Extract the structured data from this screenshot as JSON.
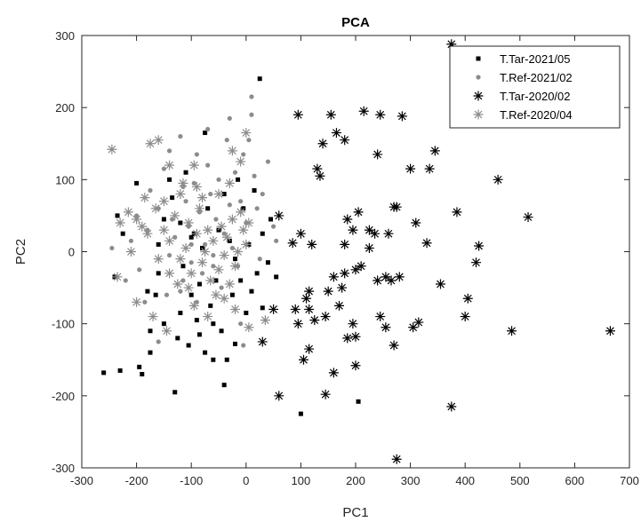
{
  "chart_data": {
    "type": "scatter",
    "title": "PCA",
    "xlabel": "PC1",
    "ylabel": "PC2",
    "xlim": [
      -300,
      700
    ],
    "ylim": [
      -300,
      300
    ],
    "xticks": [
      -300,
      -200,
      -100,
      0,
      100,
      200,
      300,
      400,
      500,
      600,
      700
    ],
    "yticks": [
      -300,
      -200,
      -100,
      0,
      100,
      200,
      300
    ],
    "grid": false,
    "legend_position": "top-right",
    "series": [
      {
        "name": "T.Tar-2021/05",
        "marker": "square",
        "color": "#000000",
        "points": [
          [
            -260,
            -168
          ],
          [
            -230,
            -165
          ],
          [
            -235,
            50
          ],
          [
            -240,
            -35
          ],
          [
            -225,
            25
          ],
          [
            -195,
            -160
          ],
          [
            -190,
            -170
          ],
          [
            -175,
            -140
          ],
          [
            -175,
            -110
          ],
          [
            -165,
            -60
          ],
          [
            -160,
            -30
          ],
          [
            -150,
            -100
          ],
          [
            -150,
            45
          ],
          [
            -135,
            75
          ],
          [
            -125,
            -120
          ],
          [
            -120,
            -85
          ],
          [
            -115,
            -20
          ],
          [
            -110,
            110
          ],
          [
            -105,
            -130
          ],
          [
            -100,
            -60
          ],
          [
            -95,
            25
          ],
          [
            -90,
            -95
          ],
          [
            -85,
            -115
          ],
          [
            -80,
            5
          ],
          [
            -75,
            -140
          ],
          [
            -70,
            60
          ],
          [
            -65,
            -75
          ],
          [
            -60,
            -100
          ],
          [
            -55,
            -40
          ],
          [
            -50,
            30
          ],
          [
            -45,
            -110
          ],
          [
            -40,
            80
          ],
          [
            -35,
            -150
          ],
          [
            -30,
            15
          ],
          [
            -25,
            -60
          ],
          [
            -20,
            -10
          ],
          [
            -15,
            100
          ],
          [
            -10,
            -40
          ],
          [
            -5,
            60
          ],
          [
            0,
            -85
          ],
          [
            5,
            10
          ],
          [
            10,
            -55
          ],
          [
            15,
            85
          ],
          [
            20,
            -30
          ],
          [
            25,
            240
          ],
          [
            -75,
            165
          ],
          [
            -130,
            -195
          ],
          [
            -200,
            95
          ],
          [
            30,
            25
          ],
          [
            40,
            -15
          ],
          [
            45,
            45
          ],
          [
            55,
            -35
          ],
          [
            -40,
            -185
          ],
          [
            -100,
            20
          ],
          [
            -140,
            100
          ],
          [
            -180,
            -55
          ],
          [
            -60,
            -150
          ],
          [
            100,
            -225
          ],
          [
            205,
            -208
          ],
          [
            -20,
            -128
          ],
          [
            30,
            -78
          ],
          [
            -120,
            40
          ],
          [
            -160,
            10
          ],
          [
            -85,
            -45
          ]
        ]
      },
      {
        "name": "T.Ref-2021/02",
        "marker": "dot",
        "color": "#8c8c8c",
        "points": [
          [
            -245,
            5
          ],
          [
            -210,
            15
          ],
          [
            -195,
            -25
          ],
          [
            -180,
            30
          ],
          [
            -175,
            85
          ],
          [
            -160,
            60
          ],
          [
            -150,
            115
          ],
          [
            -140,
            -5
          ],
          [
            -135,
            45
          ],
          [
            -130,
            20
          ],
          [
            -120,
            160
          ],
          [
            -115,
            -40
          ],
          [
            -110,
            70
          ],
          [
            -105,
            35
          ],
          [
            -100,
            -15
          ],
          [
            -95,
            95
          ],
          [
            -90,
            135
          ],
          [
            -85,
            55
          ],
          [
            -80,
            -30
          ],
          [
            -75,
            10
          ],
          [
            -70,
            120
          ],
          [
            -65,
            80
          ],
          [
            -60,
            -5
          ],
          [
            -55,
            45
          ],
          [
            -50,
            100
          ],
          [
            -45,
            -50
          ],
          [
            -40,
            25
          ],
          [
            -35,
            155
          ],
          [
            -30,
            65
          ],
          [
            -25,
            5
          ],
          [
            -20,
            110
          ],
          [
            -15,
            -20
          ],
          [
            -10,
            70
          ],
          [
            -5,
            135
          ],
          [
            0,
            40
          ],
          [
            5,
            155
          ],
          [
            10,
            190
          ],
          [
            15,
            105
          ],
          [
            20,
            60
          ],
          [
            25,
            -10
          ],
          [
            30,
            80
          ],
          [
            40,
            125
          ],
          [
            50,
            35
          ],
          [
            55,
            15
          ],
          [
            10,
            215
          ],
          [
            -5,
            -130
          ],
          [
            -120,
            -55
          ],
          [
            -160,
            -125
          ],
          [
            -185,
            -70
          ],
          [
            -200,
            50
          ],
          [
            -220,
            -40
          ],
          [
            -145,
            -60
          ],
          [
            -90,
            -70
          ],
          [
            -60,
            -20
          ],
          [
            -100,
            10
          ],
          [
            -115,
            90
          ],
          [
            -140,
            140
          ],
          [
            -70,
            170
          ],
          [
            -30,
            185
          ],
          [
            -10,
            -100
          ]
        ]
      },
      {
        "name": "T.Tar-2020/02",
        "marker": "asterisk",
        "color": "#000000",
        "points": [
          [
            375,
            288
          ],
          [
            95,
            190
          ],
          [
            155,
            190
          ],
          [
            165,
            165
          ],
          [
            215,
            195
          ],
          [
            245,
            190
          ],
          [
            285,
            188
          ],
          [
            180,
            155
          ],
          [
            140,
            150
          ],
          [
            130,
            115
          ],
          [
            135,
            105
          ],
          [
            240,
            135
          ],
          [
            300,
            115
          ],
          [
            335,
            115
          ],
          [
            345,
            140
          ],
          [
            460,
            100
          ],
          [
            515,
            48
          ],
          [
            425,
            8
          ],
          [
            420,
            -15
          ],
          [
            405,
            -65
          ],
          [
            400,
            -90
          ],
          [
            485,
            -110
          ],
          [
            665,
            -110
          ],
          [
            375,
            -215
          ],
          [
            275,
            -288
          ],
          [
            60,
            -200
          ],
          [
            145,
            -198
          ],
          [
            200,
            -158
          ],
          [
            160,
            -168
          ],
          [
            115,
            -135
          ],
          [
            105,
            -150
          ],
          [
            185,
            -120
          ],
          [
            200,
            -118
          ],
          [
            255,
            -105
          ],
          [
            270,
            -130
          ],
          [
            305,
            -105
          ],
          [
            315,
            -98
          ],
          [
            355,
            -45
          ],
          [
            385,
            55
          ],
          [
            275,
            62
          ],
          [
            270,
            62
          ],
          [
            330,
            12
          ],
          [
            265,
            -40
          ],
          [
            280,
            -35
          ],
          [
            240,
            -40
          ],
          [
            245,
            -90
          ],
          [
            195,
            -100
          ],
          [
            170,
            -75
          ],
          [
            145,
            -90
          ],
          [
            125,
            -95
          ],
          [
            110,
            -65
          ],
          [
            115,
            -55
          ],
          [
            150,
            -55
          ],
          [
            180,
            -30
          ],
          [
            175,
            -50
          ],
          [
            210,
            -20
          ],
          [
            200,
            -25
          ],
          [
            185,
            45
          ],
          [
            195,
            30
          ],
          [
            225,
            30
          ],
          [
            235,
            25
          ],
          [
            260,
            25
          ],
          [
            205,
            55
          ],
          [
            225,
            5
          ],
          [
            160,
            -35
          ],
          [
            120,
            10
          ],
          [
            100,
            25
          ],
          [
            85,
            12
          ],
          [
            60,
            50
          ],
          [
            90,
            -80
          ],
          [
            30,
            -125
          ],
          [
            50,
            -80
          ],
          [
            95,
            -100
          ],
          [
            115,
            -80
          ],
          [
            180,
            10
          ],
          [
            255,
            -35
          ],
          [
            310,
            40
          ]
        ]
      },
      {
        "name": "T.Ref-2020/04",
        "marker": "asterisk",
        "color": "#8c8c8c",
        "points": [
          [
            -245,
            142
          ],
          [
            -175,
            150
          ],
          [
            -160,
            155
          ],
          [
            -140,
            120
          ],
          [
            -115,
            95
          ],
          [
            -95,
            120
          ],
          [
            -230,
            40
          ],
          [
            -215,
            55
          ],
          [
            -200,
            45
          ],
          [
            -190,
            35
          ],
          [
            -180,
            25
          ],
          [
            -165,
            60
          ],
          [
            -150,
            30
          ],
          [
            -140,
            15
          ],
          [
            -130,
            50
          ],
          [
            -120,
            -10
          ],
          [
            -110,
            5
          ],
          [
            -105,
            40
          ],
          [
            -100,
            -30
          ],
          [
            -90,
            25
          ],
          [
            -85,
            60
          ],
          [
            -80,
            -15
          ],
          [
            -75,
            0
          ],
          [
            -70,
            30
          ],
          [
            -65,
            -40
          ],
          [
            -60,
            15
          ],
          [
            -55,
            -60
          ],
          [
            -50,
            -25
          ],
          [
            -45,
            35
          ],
          [
            -40,
            -5
          ],
          [
            -35,
            20
          ],
          [
            -30,
            -45
          ],
          [
            -25,
            45
          ],
          [
            -20,
            -20
          ],
          [
            -15,
            0
          ],
          [
            -10,
            55
          ],
          [
            -5,
            30
          ],
          [
            0,
            10
          ],
          [
            5,
            40
          ],
          [
            -10,
            125
          ],
          [
            -90,
            90
          ],
          [
            -200,
            -70
          ],
          [
            -170,
            -90
          ],
          [
            -145,
            -110
          ],
          [
            -125,
            -45
          ],
          [
            -95,
            -75
          ],
          [
            -70,
            -90
          ],
          [
            -210,
            0
          ],
          [
            -235,
            -35
          ],
          [
            -160,
            -10
          ],
          [
            -140,
            -30
          ],
          [
            -120,
            80
          ],
          [
            -80,
            75
          ],
          [
            -50,
            80
          ],
          [
            -30,
            95
          ],
          [
            5,
            -105
          ],
          [
            35,
            -95
          ],
          [
            -40,
            -65
          ],
          [
            -20,
            -80
          ],
          [
            -105,
            -50
          ],
          [
            -150,
            70
          ],
          [
            -185,
            75
          ],
          [
            0,
            165
          ],
          [
            -25,
            140
          ]
        ]
      }
    ]
  }
}
